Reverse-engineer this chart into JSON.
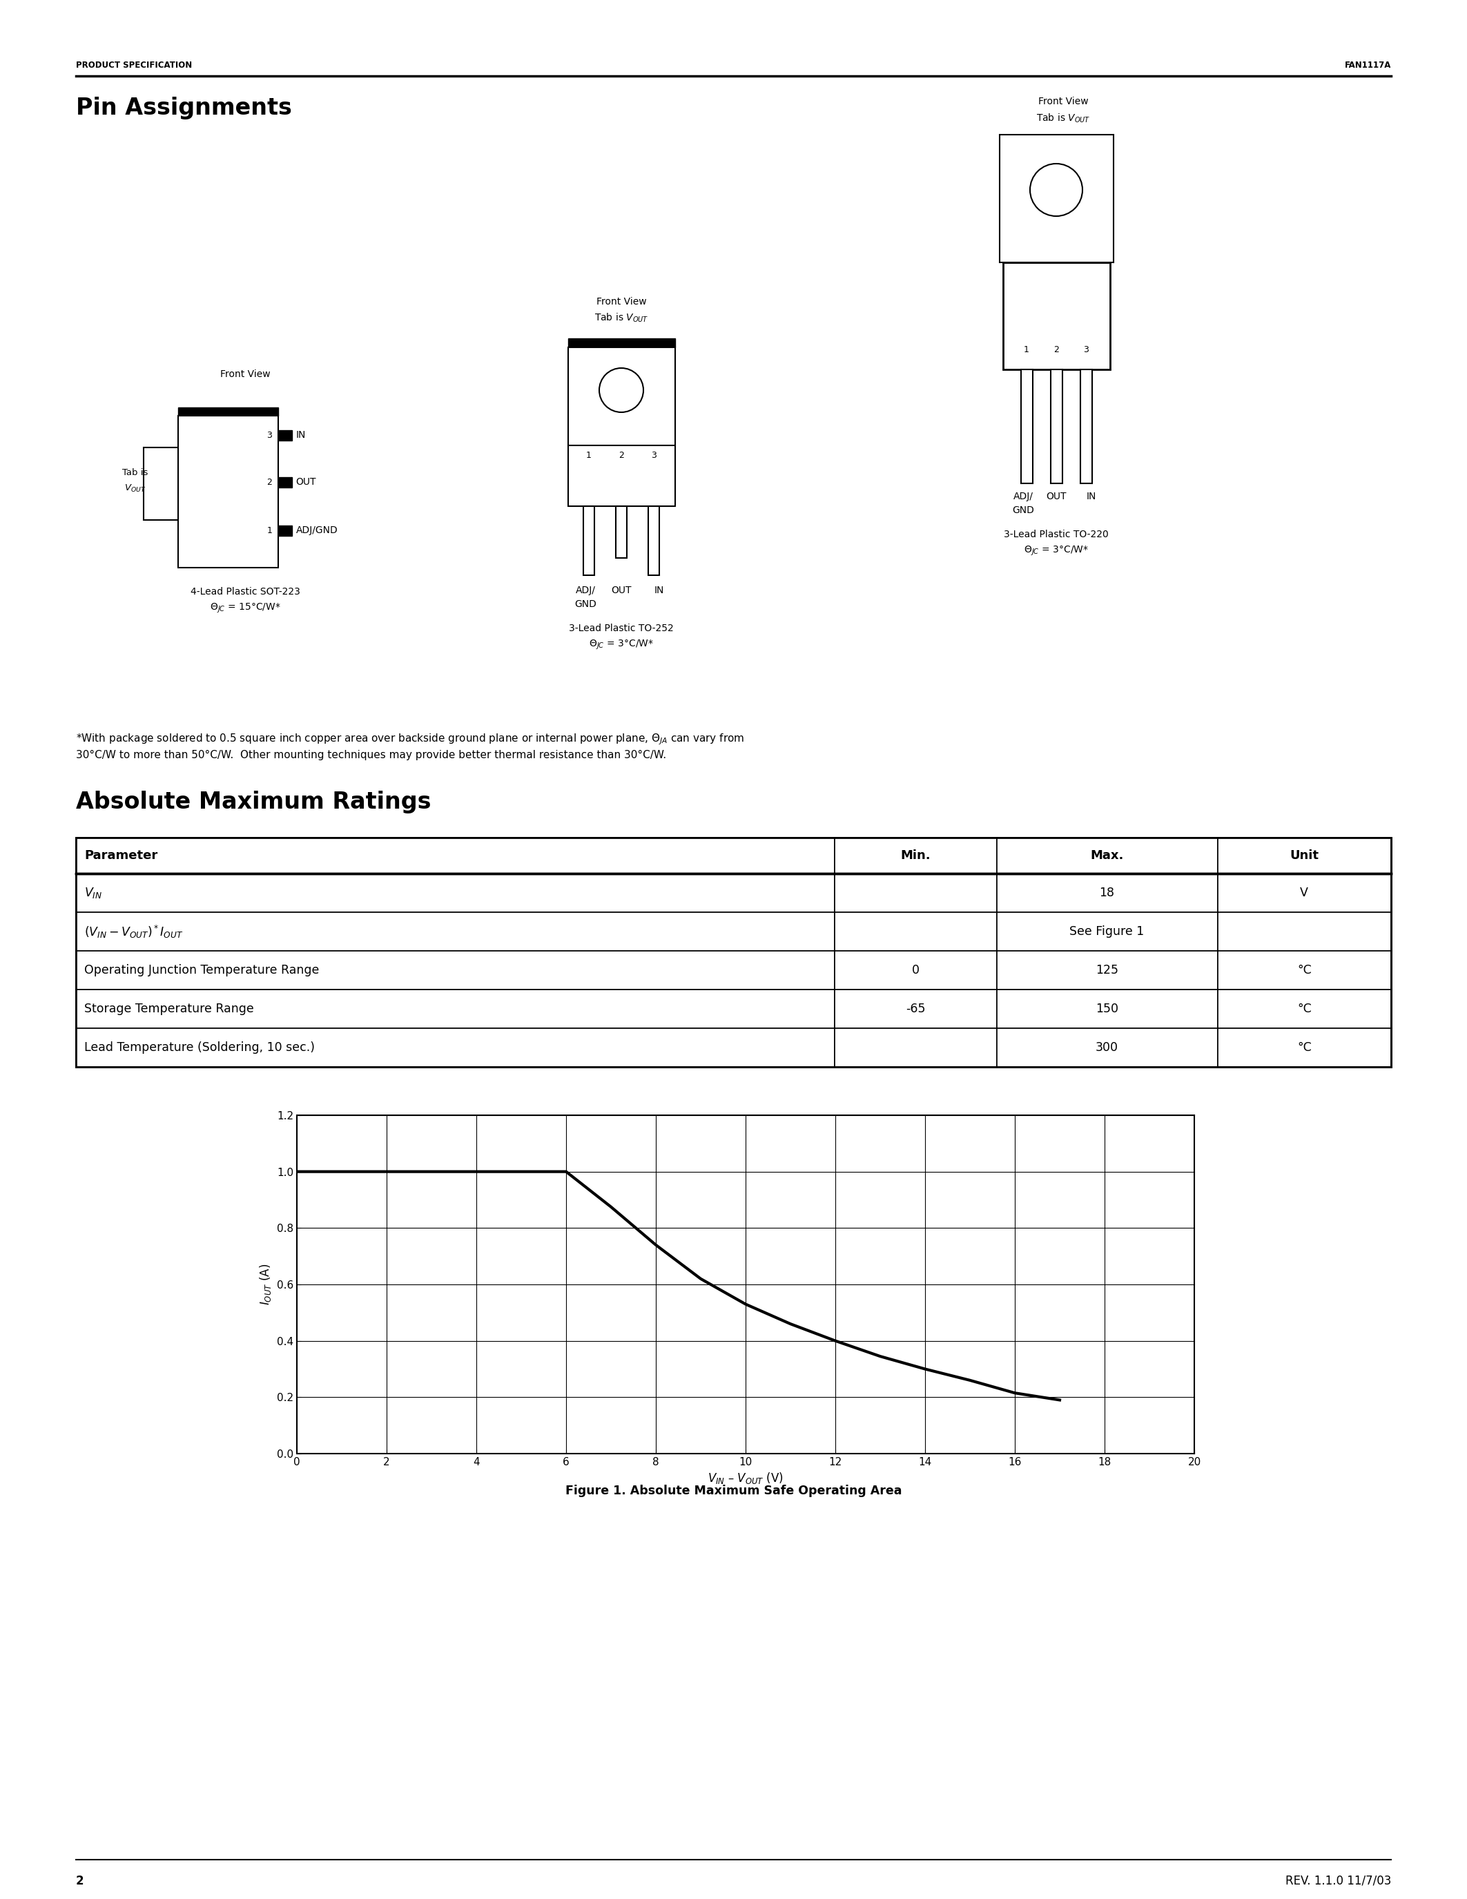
{
  "page_title_left": "PRODUCT SPECIFICATION",
  "page_title_right": "FAN1117A",
  "section1_title": "Pin Assignments",
  "section2_title": "Absolute Maximum Ratings",
  "footnote_line1": "*With package soldered to 0.5 square inch copper area over backside ground plane or internal power plane, θ₁ₐ can vary from",
  "footnote_line2": "30°C/W to more than 50°C/W.  Other mounting techniques may provide better thermal resistance than 30°C/W.",
  "table_headers": [
    "Parameter",
    "Min.",
    "Max.",
    "Unit"
  ],
  "graph_xlabel": "Vₐₙ – Vₒᵁᵀ (V)",
  "graph_ylabel": "Iₒᵁᵀ (A)",
  "graph_title": "Figure 1. Absolute Maximum Safe Operating Area",
  "graph_xlim": [
    0,
    20
  ],
  "graph_ylim": [
    0,
    1.2
  ],
  "graph_xticks": [
    0,
    2,
    4,
    6,
    8,
    10,
    12,
    14,
    16,
    18,
    20
  ],
  "graph_yticks": [
    0,
    0.2,
    0.4,
    0.6,
    0.8,
    1.0,
    1.2
  ],
  "page_number": "2",
  "rev_info": "REV. 1.1.0 11/7/03",
  "bg_color": "#ffffff"
}
